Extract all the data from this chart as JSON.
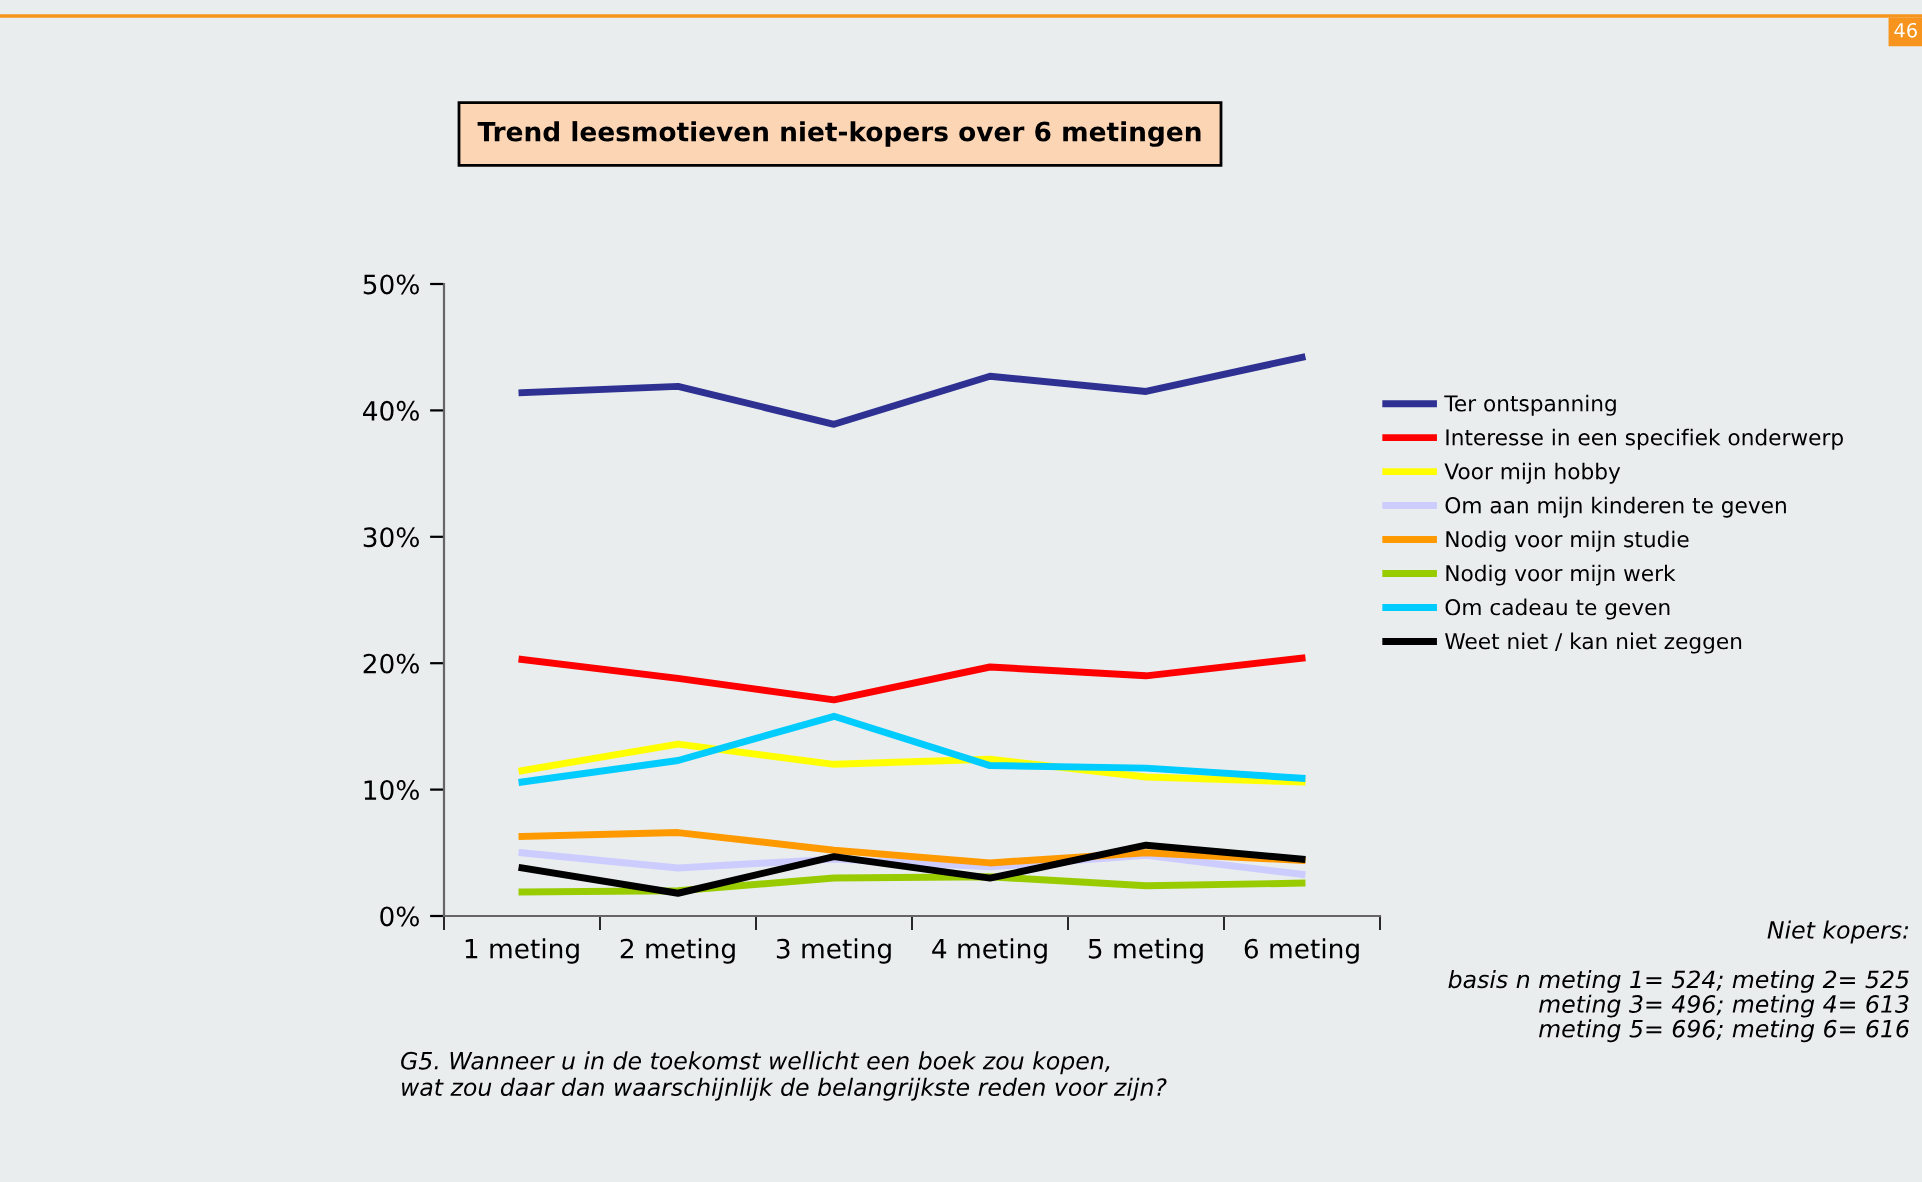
{
  "chart_data": {
    "type": "line",
    "title": "Trend leesmotieven niet-kopers over 6 metingen",
    "categories": [
      "1 meting",
      "2 meting",
      "3 meting",
      "4 meting",
      "5 meting",
      "6 meting"
    ],
    "series": [
      {
        "name": "Ter ontspanning",
        "color": "#2e3192",
        "values": [
          41.4,
          41.9,
          38.9,
          42.7,
          41.5,
          44.2
        ]
      },
      {
        "name": "Interesse in een specifiek onderwerp",
        "color": "#ff0000",
        "values": [
          20.3,
          18.8,
          17.1,
          19.7,
          19.0,
          20.4
        ]
      },
      {
        "name": "Voor mijn hobby",
        "color": "#ffff00",
        "values": [
          11.5,
          13.6,
          12.0,
          12.4,
          11.0,
          10.6
        ]
      },
      {
        "name": "Om aan mijn kinderen te geven",
        "color": "#ccccff",
        "values": [
          5.0,
          3.8,
          4.5,
          3.9,
          4.8,
          3.3
        ]
      },
      {
        "name": "Nodig voor mijn studie",
        "color": "#ff9900",
        "values": [
          6.3,
          6.6,
          5.2,
          4.2,
          5.0,
          4.4
        ]
      },
      {
        "name": "Nodig voor mijn werk",
        "color": "#99cc00",
        "values": [
          1.9,
          2.0,
          3.0,
          3.1,
          2.4,
          2.6
        ]
      },
      {
        "name": "Om cadeau te geven",
        "color": "#00ccff",
        "values": [
          10.6,
          12.3,
          15.8,
          11.9,
          11.7,
          10.9
        ]
      },
      {
        "name": "Weet niet / kan niet zeggen",
        "color": "#000000",
        "values": [
          3.8,
          1.8,
          4.7,
          3.0,
          5.6,
          4.5
        ]
      }
    ],
    "ylim": [
      0,
      50
    ],
    "yticks": [
      {
        "value": 0,
        "label": "0%"
      },
      {
        "value": 10,
        "label": "10%"
      },
      {
        "value": 20,
        "label": "20%"
      },
      {
        "value": 30,
        "label": "30%"
      },
      {
        "value": 40,
        "label": "40%"
      },
      {
        "value": 50,
        "label": "50%"
      }
    ],
    "grid": false,
    "legend": "right",
    "marker": "none",
    "line_style": "solid",
    "annotations": [
      "46",
      "Niet kopers:",
      "basis n meting 1= 524; meting 2= 525\nmeting 3= 496; meting 4= 613\nmeting 5= 696; meting 6= 616",
      "G5. Wanneer u in de toekomst wellicht een boek zou kopen,\nwat zou daar dan waarschijnlijk de belangrijkste reden voor zijn?"
    ]
  }
}
